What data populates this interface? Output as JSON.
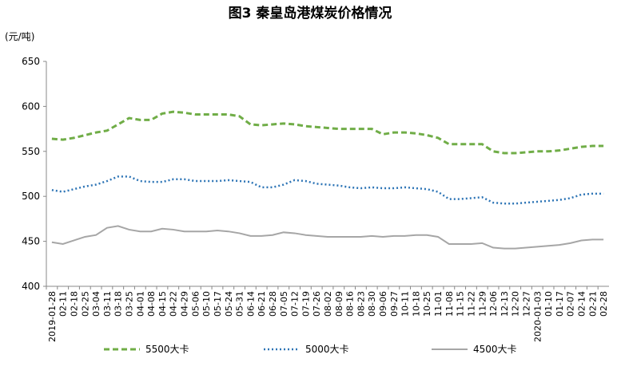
{
  "chart_data": {
    "type": "line",
    "title": "图3    秦皇岛港煤炭价格情况",
    "y_label": "(元/吨)",
    "categories": [
      "2019-01-28",
      "02-11",
      "02-18",
      "02-25",
      "03-04",
      "03-11",
      "03-18",
      "03-25",
      "04-01",
      "04-08",
      "04-15",
      "04-22",
      "04-29",
      "05-06",
      "05-10",
      "05-17",
      "05-24",
      "05-31",
      "06-14",
      "06-21",
      "06-28",
      "07-05",
      "07-12",
      "07-19",
      "07-26",
      "08-02",
      "08-09",
      "08-16",
      "08-23",
      "08-30",
      "09-06",
      "09-27",
      "10-11",
      "10-18",
      "10-25",
      "11-01",
      "11-08",
      "11-15",
      "11-22",
      "11-29",
      "12-06",
      "12-13",
      "12-20",
      "12-27",
      "2020-01-03",
      "01-10",
      "01-17",
      "02-07",
      "02-14",
      "02-21",
      "02-28"
    ],
    "series": [
      {
        "name": "5500大卡",
        "color": "#70ad47",
        "dash": "dashed",
        "values": [
          564,
          563,
          565,
          568,
          571,
          573,
          580,
          587,
          585,
          585,
          592,
          594,
          593,
          591,
          591,
          591,
          591,
          589,
          580,
          579,
          580,
          581,
          580,
          578,
          577,
          576,
          575,
          575,
          575,
          575,
          569,
          571,
          571,
          570,
          568,
          565,
          558,
          558,
          558,
          558,
          550,
          548,
          548,
          549,
          550,
          550,
          551,
          553,
          555,
          556,
          556
        ]
      },
      {
        "name": "5000大卡",
        "color": "#2e75b6",
        "dash": "dotted",
        "values": [
          507,
          505,
          508,
          511,
          513,
          517,
          522,
          522,
          517,
          516,
          516,
          519,
          519,
          517,
          517,
          517,
          518,
          517,
          516,
          510,
          510,
          513,
          518,
          517,
          514,
          513,
          512,
          510,
          509,
          510,
          509,
          509,
          510,
          509,
          508,
          505,
          497,
          497,
          498,
          499,
          493,
          492,
          492,
          493,
          494,
          495,
          496,
          498,
          502,
          503,
          503
        ]
      },
      {
        "name": "4500大卡",
        "color": "#a6a6a6",
        "dash": "solid",
        "values": [
          449,
          447,
          451,
          455,
          457,
          465,
          467,
          463,
          461,
          461,
          464,
          463,
          461,
          461,
          461,
          462,
          461,
          459,
          456,
          456,
          457,
          460,
          459,
          457,
          456,
          455,
          455,
          455,
          455,
          456,
          455,
          456,
          456,
          457,
          457,
          455,
          447,
          447,
          447,
          448,
          443,
          442,
          442,
          443,
          444,
          445,
          446,
          448,
          451,
          452,
          452
        ]
      }
    ],
    "ylim": [
      400,
      650
    ],
    "yticks": [
      400,
      450,
      500,
      550,
      600,
      650
    ],
    "grid": false
  }
}
